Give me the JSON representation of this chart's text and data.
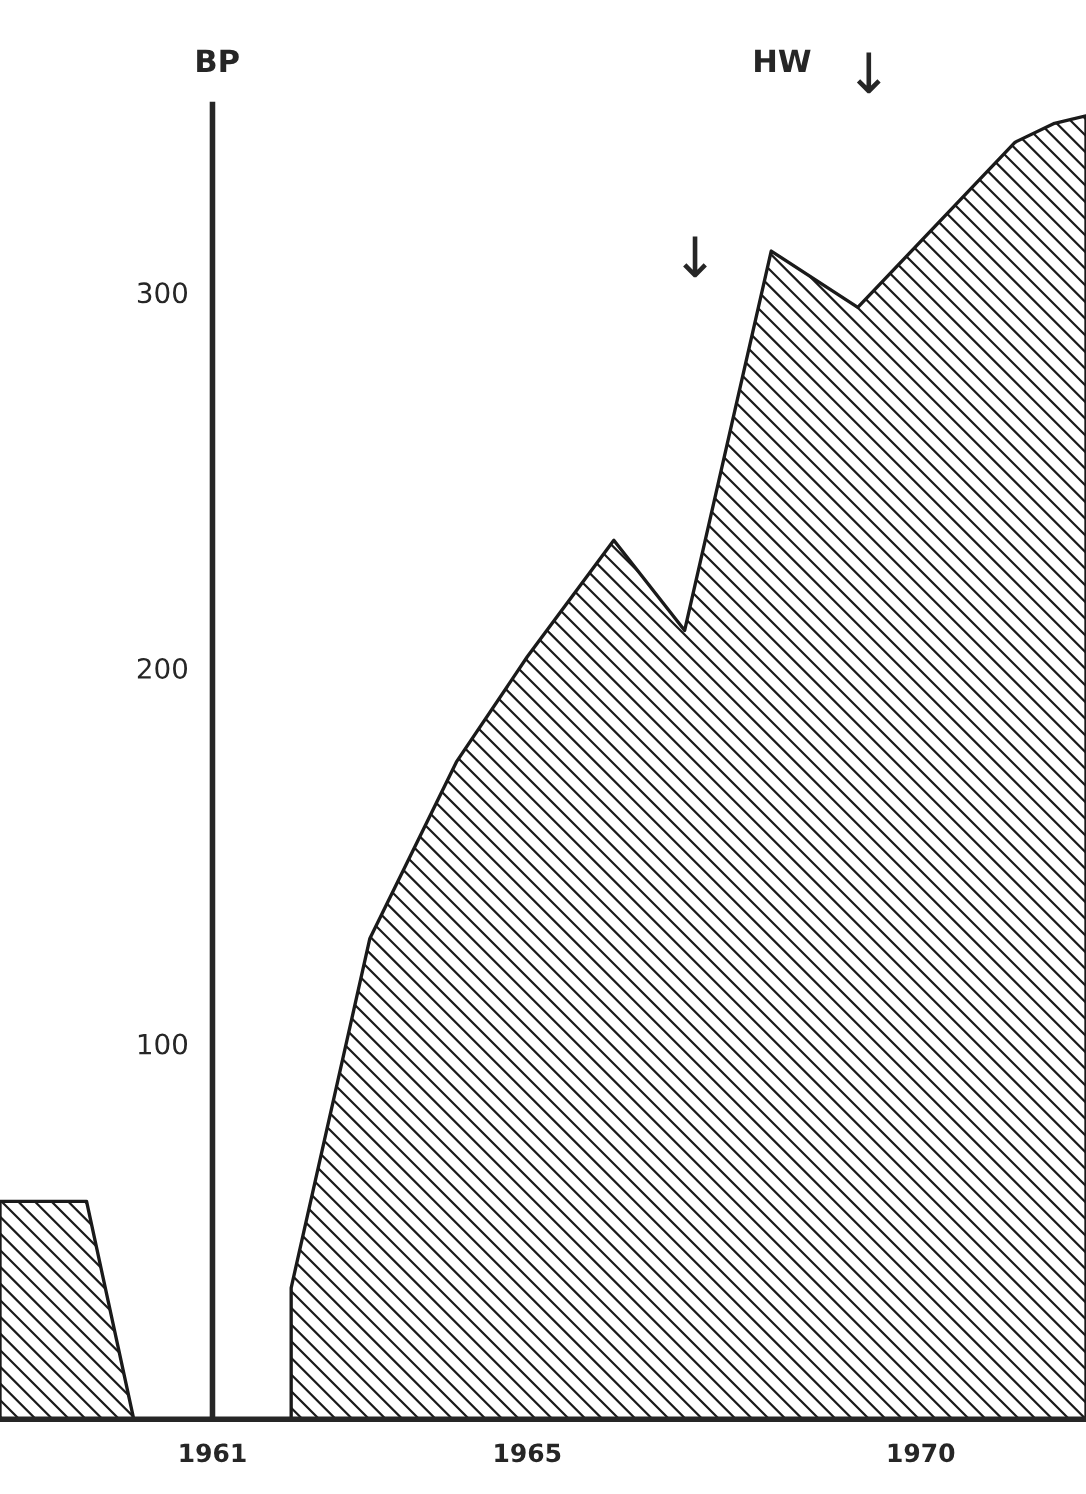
{
  "chart_data": {
    "type": "area",
    "ylabel": "BP",
    "x": [
      1958.3,
      1959.4,
      1960.0,
      1961.9,
      1962.0,
      1963.0,
      1964.1,
      1965.0,
      1966.1,
      1967.0,
      1968.1,
      1969.2,
      1971.2,
      1971.7,
      1972.1
    ],
    "series": [
      {
        "color": "#1a1a1a",
        "values": [
          58,
          58,
          0,
          null,
          35,
          128,
          175,
          203,
          234,
          210,
          311,
          296,
          340,
          345,
          347
        ]
      }
    ],
    "xlim": [
      1958.3,
      1972.1
    ],
    "ylim": [
      0,
      350
    ],
    "xticks": [
      1961,
      1965,
      1970
    ],
    "yticks": [
      100,
      200,
      300
    ],
    "grid": false,
    "annotations": [
      "HW",
      "↓",
      "↓"
    ]
  }
}
